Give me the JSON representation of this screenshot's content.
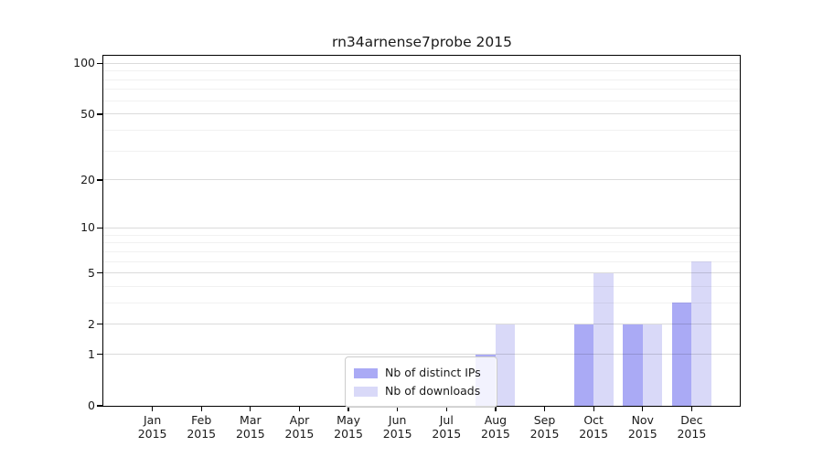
{
  "chart_data": {
    "type": "bar",
    "title": "rn34arnense7probe 2015",
    "x_axis": {
      "categories": [
        {
          "month": "Jan",
          "year": "2015"
        },
        {
          "month": "Feb",
          "year": "2015"
        },
        {
          "month": "Mar",
          "year": "2015"
        },
        {
          "month": "Apr",
          "year": "2015"
        },
        {
          "month": "May",
          "year": "2015"
        },
        {
          "month": "Jun",
          "year": "2015"
        },
        {
          "month": "Jul",
          "year": "2015"
        },
        {
          "month": "Aug",
          "year": "2015"
        },
        {
          "month": "Sep",
          "year": "2015"
        },
        {
          "month": "Oct",
          "year": "2015"
        },
        {
          "month": "Nov",
          "year": "2015"
        },
        {
          "month": "Dec",
          "year": "2015"
        }
      ]
    },
    "y_axis": {
      "scale": "log1p",
      "ylim": [
        0,
        111
      ],
      "major_ticks": [
        {
          "value": 0,
          "label": "0"
        },
        {
          "value": 1,
          "label": "1"
        },
        {
          "value": 2,
          "label": "2"
        },
        {
          "value": 5,
          "label": "5"
        },
        {
          "value": 10,
          "label": "10"
        },
        {
          "value": 20,
          "label": "20"
        },
        {
          "value": 50,
          "label": "50"
        },
        {
          "value": 100,
          "label": "100"
        }
      ],
      "minor_ticks": [
        3,
        4,
        6,
        7,
        8,
        9,
        30,
        40,
        60,
        70,
        80,
        90
      ]
    },
    "series": [
      {
        "name": "Nb of distinct IPs",
        "color": "#aaaaf5",
        "values": [
          0,
          0,
          0,
          0,
          0,
          0,
          0,
          1,
          0,
          2,
          2,
          3
        ]
      },
      {
        "name": "Nb of downloads",
        "color": "#d9d9f8",
        "values": [
          0,
          0,
          0,
          0,
          0,
          0,
          0,
          2,
          0,
          5,
          2,
          6
        ]
      }
    ],
    "legend": {
      "position": "lower center"
    },
    "grid": {
      "orientation": "horizontal",
      "major_color": "rgba(0,0,0,0.14)",
      "minor_color": "rgba(0,0,0,0.055)"
    }
  }
}
